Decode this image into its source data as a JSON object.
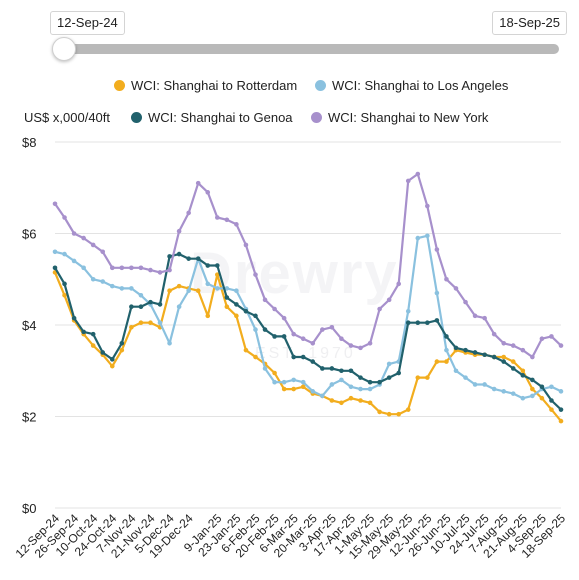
{
  "range_slider": {
    "start_label": "12-Sep-24",
    "end_label": "18-Sep-25"
  },
  "watermark": {
    "brand": "Drewry",
    "est": "EST. 1970"
  },
  "chart_data": {
    "type": "line",
    "ylabel": "US$ x,000/40ft",
    "ylim": [
      0,
      8
    ],
    "yticks": [
      0,
      2,
      4,
      6,
      8
    ],
    "ytick_labels": [
      "$0",
      "$2",
      "$4",
      "$6",
      "$8"
    ],
    "grid": true,
    "legend_position": "top",
    "x": [
      "12-Sep-24",
      "19-Sep-24",
      "26-Sep-24",
      "3-Oct-24",
      "10-Oct-24",
      "17-Oct-24",
      "24-Oct-24",
      "31-Oct-24",
      "7-Nov-24",
      "14-Nov-24",
      "21-Nov-24",
      "28-Nov-24",
      "5-Dec-24",
      "12-Dec-24",
      "19-Dec-24",
      "26-Dec-24",
      "2-Jan-25",
      "9-Jan-25",
      "16-Jan-25",
      "23-Jan-25",
      "30-Jan-25",
      "6-Feb-25",
      "13-Feb-25",
      "20-Feb-25",
      "27-Feb-25",
      "6-Mar-25",
      "13-Mar-25",
      "20-Mar-25",
      "27-Mar-25",
      "3-Apr-25",
      "10-Apr-25",
      "17-Apr-25",
      "24-Apr-25",
      "1-May-25",
      "8-May-25",
      "15-May-25",
      "22-May-25",
      "29-May-25",
      "5-Jun-25",
      "12-Jun-25",
      "19-Jun-25",
      "26-Jun-25",
      "3-Jul-25",
      "10-Jul-25",
      "17-Jul-25",
      "24-Jul-25",
      "31-Jul-25",
      "7-Aug-25",
      "14-Aug-25",
      "21-Aug-25",
      "28-Aug-25",
      "4-Sep-25",
      "11-Sep-25",
      "18-Sep-25"
    ],
    "tick_labels": [
      "12-Sep-24",
      "26-Sep-24",
      "10-Oct-24",
      "24-Oct-24",
      "7-Nov-24",
      "21-Nov-24",
      "5-Dec-24",
      "19-Dec-24",
      "9-Jan-25",
      "23-Jan-25",
      "6-Feb-25",
      "20-Feb-25",
      "6-Mar-25",
      "20-Mar-25",
      "3-Apr-25",
      "17-Apr-25",
      "1-May-25",
      "15-May-25",
      "29-May-25",
      "12-Jun-25",
      "26-Jun-25",
      "10-Jul-25",
      "24-Jul-25",
      "7-Aug-25",
      "21-Aug-25",
      "4-Sep-25",
      "18-Sep-25"
    ],
    "series": [
      {
        "name": "WCI: Shanghai to Rotterdam",
        "color": "#f2ad1e",
        "values": [
          5.15,
          4.65,
          4.1,
          3.8,
          3.55,
          3.35,
          3.1,
          3.45,
          3.95,
          4.05,
          4.05,
          3.95,
          4.75,
          4.85,
          4.8,
          4.75,
          4.2,
          5.1,
          4.4,
          4.2,
          3.45,
          3.3,
          3.15,
          2.95,
          2.6,
          2.6,
          2.65,
          2.5,
          2.45,
          2.35,
          2.3,
          2.4,
          2.35,
          2.3,
          2.1,
          2.05,
          2.05,
          2.15,
          2.85,
          2.85,
          3.2,
          3.2,
          3.45,
          3.4,
          3.35,
          3.35,
          3.3,
          3.3,
          3.2,
          3.0,
          2.6,
          2.4,
          2.15,
          1.9
        ]
      },
      {
        "name": "WCI: Shanghai to Los Angeles",
        "color": "#8ac1df",
        "values": [
          5.6,
          5.55,
          5.4,
          5.25,
          5.0,
          4.95,
          4.85,
          4.8,
          4.8,
          4.65,
          4.45,
          4.05,
          3.6,
          4.4,
          4.75,
          5.45,
          4.9,
          4.8,
          4.8,
          4.75,
          4.35,
          3.9,
          3.05,
          2.75,
          2.75,
          2.8,
          2.75,
          2.55,
          2.45,
          2.7,
          2.8,
          2.65,
          2.6,
          2.6,
          2.7,
          3.15,
          3.2,
          4.3,
          5.9,
          5.95,
          4.7,
          3.45,
          3.0,
          2.85,
          2.7,
          2.7,
          2.6,
          2.55,
          2.5,
          2.4,
          2.45,
          2.6,
          2.65,
          2.55
        ]
      },
      {
        "name": "WCI: Shanghai to Genoa",
        "color": "#21616c",
        "values": [
          5.25,
          4.9,
          4.15,
          3.85,
          3.8,
          3.4,
          3.25,
          3.6,
          4.4,
          4.4,
          4.5,
          4.45,
          5.5,
          5.55,
          5.45,
          5.45,
          5.3,
          5.3,
          4.6,
          4.45,
          4.3,
          4.2,
          3.9,
          3.75,
          3.75,
          3.3,
          3.3,
          3.2,
          3.05,
          3.05,
          3.0,
          3.0,
          2.85,
          2.75,
          2.75,
          2.85,
          2.95,
          4.05,
          4.05,
          4.05,
          4.1,
          3.75,
          3.5,
          3.45,
          3.4,
          3.35,
          3.3,
          3.2,
          3.05,
          2.9,
          2.8,
          2.65,
          2.35,
          2.15
        ]
      },
      {
        "name": "WCI: Shanghai to New York",
        "color": "#a790cc",
        "values": [
          6.65,
          6.35,
          6.0,
          5.9,
          5.75,
          5.6,
          5.25,
          5.25,
          5.25,
          5.25,
          5.2,
          5.15,
          5.2,
          6.05,
          6.45,
          7.1,
          6.9,
          6.35,
          6.3,
          6.2,
          5.75,
          5.1,
          4.55,
          4.35,
          4.15,
          3.8,
          3.7,
          3.6,
          3.9,
          3.95,
          3.7,
          3.55,
          3.5,
          3.6,
          4.35,
          4.55,
          4.9,
          7.15,
          7.3,
          6.6,
          5.65,
          5.0,
          4.8,
          4.5,
          4.2,
          4.15,
          3.8,
          3.6,
          3.55,
          3.45,
          3.3,
          3.7,
          3.75,
          3.55
        ]
      }
    ]
  }
}
